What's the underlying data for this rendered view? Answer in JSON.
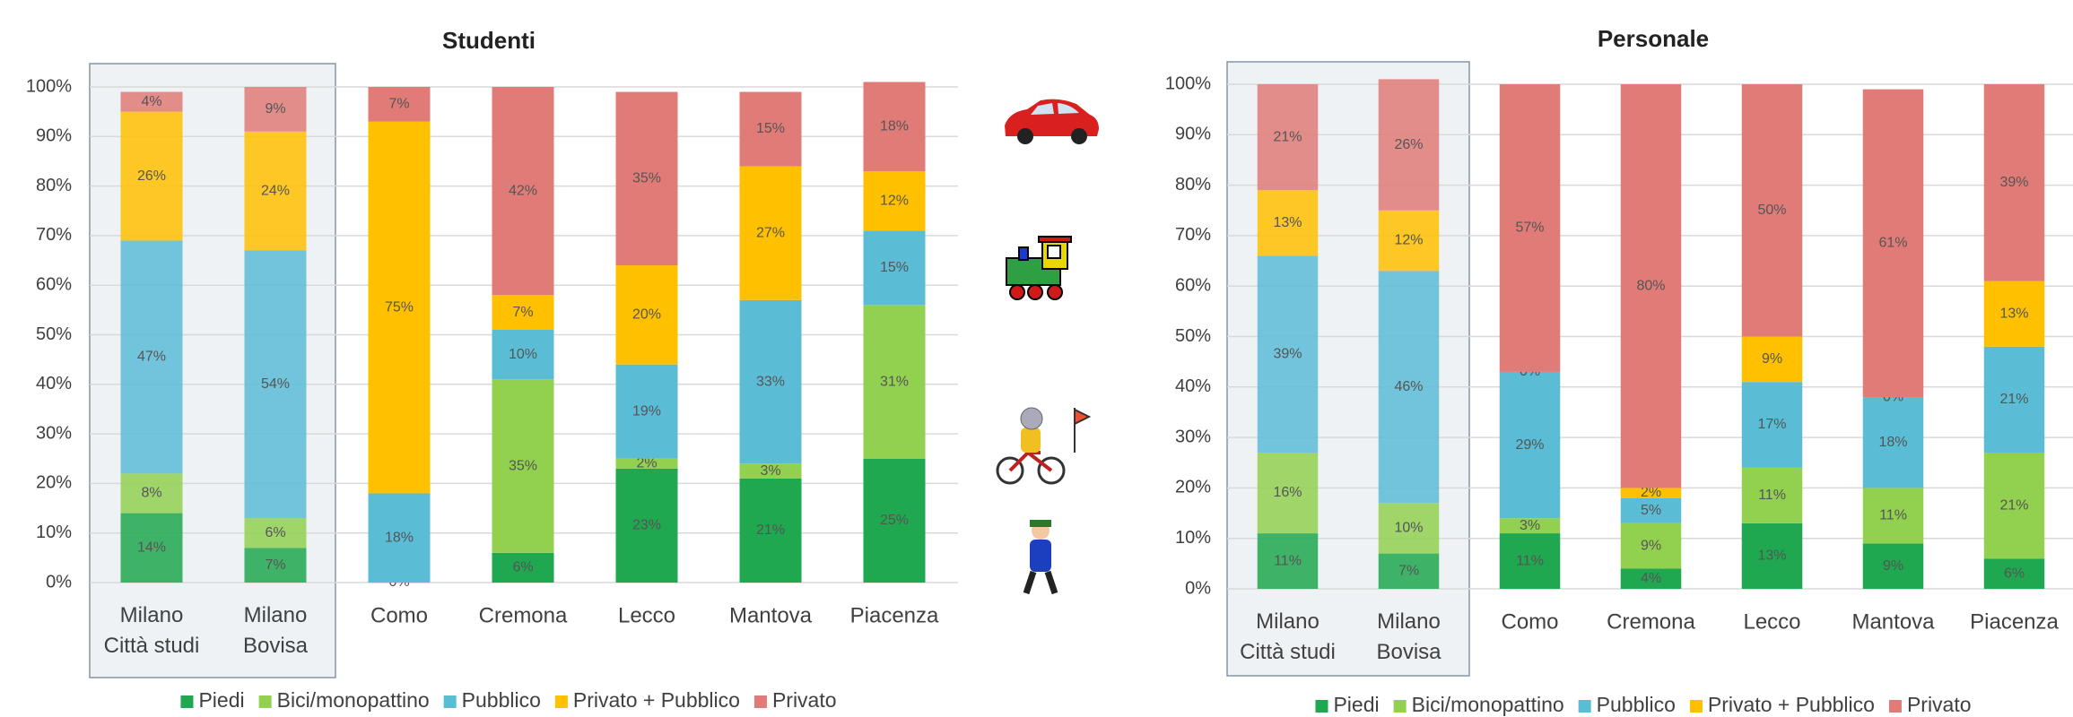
{
  "chart_data": [
    {
      "type": "stacked_bar",
      "title": "Studenti",
      "categories": [
        "Milano Città studi",
        "Milano Bovisa",
        "Como",
        "Cremona",
        "Lecco",
        "Mantova",
        "Piacenza"
      ],
      "ylim": [
        0,
        100
      ],
      "yticks": [
        {
          "value": 0,
          "label": "0%"
        },
        {
          "value": 10,
          "label": "10%"
        },
        {
          "value": 20,
          "label": "20%"
        },
        {
          "value": 30,
          "label": "30%"
        },
        {
          "value": 40,
          "label": "40%"
        },
        {
          "value": 50,
          "label": "50%"
        },
        {
          "value": 60,
          "label": "60%"
        },
        {
          "value": 70,
          "label": "70%"
        },
        {
          "value": 80,
          "label": "80%"
        },
        {
          "value": 90,
          "label": "90%"
        },
        {
          "value": 100,
          "label": "100%"
        }
      ],
      "grid": true,
      "series": [
        {
          "name": "Piedi",
          "color": "#1fa84f",
          "values": [
            14,
            7,
            0,
            6,
            23,
            21,
            25
          ],
          "value_labels": [
            "14%",
            "7%",
            "0%",
            "6%",
            "23%",
            "21%",
            "25%"
          ]
        },
        {
          "name": "Bici/monopattino",
          "color": "#92d050",
          "values": [
            8,
            6,
            null,
            35,
            2,
            3,
            31
          ],
          "value_labels": [
            "8%",
            "6%",
            null,
            "35%",
            "2%",
            "3%",
            "31%"
          ]
        },
        {
          "name": "Pubblico",
          "color": "#5bbcd6",
          "values": [
            47,
            54,
            18,
            10,
            19,
            33,
            15
          ],
          "value_labels": [
            "47%",
            "54%",
            "18%",
            "10%",
            "19%",
            "33%",
            "15%"
          ]
        },
        {
          "name": "Privato + Pubblico",
          "color": "#ffc000",
          "values": [
            26,
            24,
            75,
            7,
            20,
            27,
            12
          ],
          "value_labels": [
            "26%",
            "24%",
            "75%",
            "7%",
            "20%",
            "27%",
            "12%"
          ]
        },
        {
          "name": "Privato",
          "color": "#e07b77",
          "values": [
            4,
            9,
            7,
            42,
            35,
            15,
            18
          ],
          "value_labels": [
            "4%",
            "9%",
            "7%",
            "42%",
            "35%",
            "15%",
            "18%"
          ]
        }
      ]
    },
    {
      "type": "stacked_bar",
      "title": "Personale",
      "categories": [
        "Milano Città studi",
        "Milano Bovisa",
        "Como",
        "Cremona",
        "Lecco",
        "Mantova",
        "Piacenza"
      ],
      "ylim": [
        0,
        100
      ],
      "yticks": [
        {
          "value": 0,
          "label": "0%"
        },
        {
          "value": 10,
          "label": "10%"
        },
        {
          "value": 20,
          "label": "20%"
        },
        {
          "value": 30,
          "label": "30%"
        },
        {
          "value": 40,
          "label": "40%"
        },
        {
          "value": 50,
          "label": "50%"
        },
        {
          "value": 60,
          "label": "60%"
        },
        {
          "value": 70,
          "label": "70%"
        },
        {
          "value": 80,
          "label": "80%"
        },
        {
          "value": 90,
          "label": "90%"
        },
        {
          "value": 100,
          "label": "100%"
        }
      ],
      "grid": true,
      "series": [
        {
          "name": "Piedi",
          "color": "#1fa84f",
          "values": [
            11,
            7,
            11,
            4,
            13,
            9,
            6
          ],
          "value_labels": [
            "11%",
            "7%",
            "11%",
            "4%",
            "13%",
            "9%",
            "6%"
          ]
        },
        {
          "name": "Bici/monopattino",
          "color": "#92d050",
          "values": [
            16,
            10,
            3,
            9,
            11,
            11,
            21
          ],
          "value_labels": [
            "16%",
            "10%",
            "3%",
            "9%",
            "11%",
            "11%",
            "21%"
          ]
        },
        {
          "name": "Pubblico",
          "color": "#5bbcd6",
          "values": [
            39,
            46,
            29,
            5,
            17,
            18,
            21
          ],
          "value_labels": [
            "39%",
            "46%",
            "29%",
            "5%",
            "17%",
            "18%",
            "21%"
          ]
        },
        {
          "name": "Privato + Pubblico",
          "color": "#ffc000",
          "values": [
            13,
            12,
            0,
            2,
            9,
            0,
            13
          ],
          "value_labels": [
            "13%",
            "12%",
            "0%",
            "2%",
            "9%",
            "0%",
            "13%"
          ]
        },
        {
          "name": "Privato",
          "color": "#e07b77",
          "values": [
            21,
            26,
            57,
            80,
            50,
            61,
            39
          ],
          "value_labels": [
            "21%",
            "26%",
            "57%",
            "80%",
            "50%",
            "61%",
            "39%"
          ]
        }
      ]
    }
  ]
}
